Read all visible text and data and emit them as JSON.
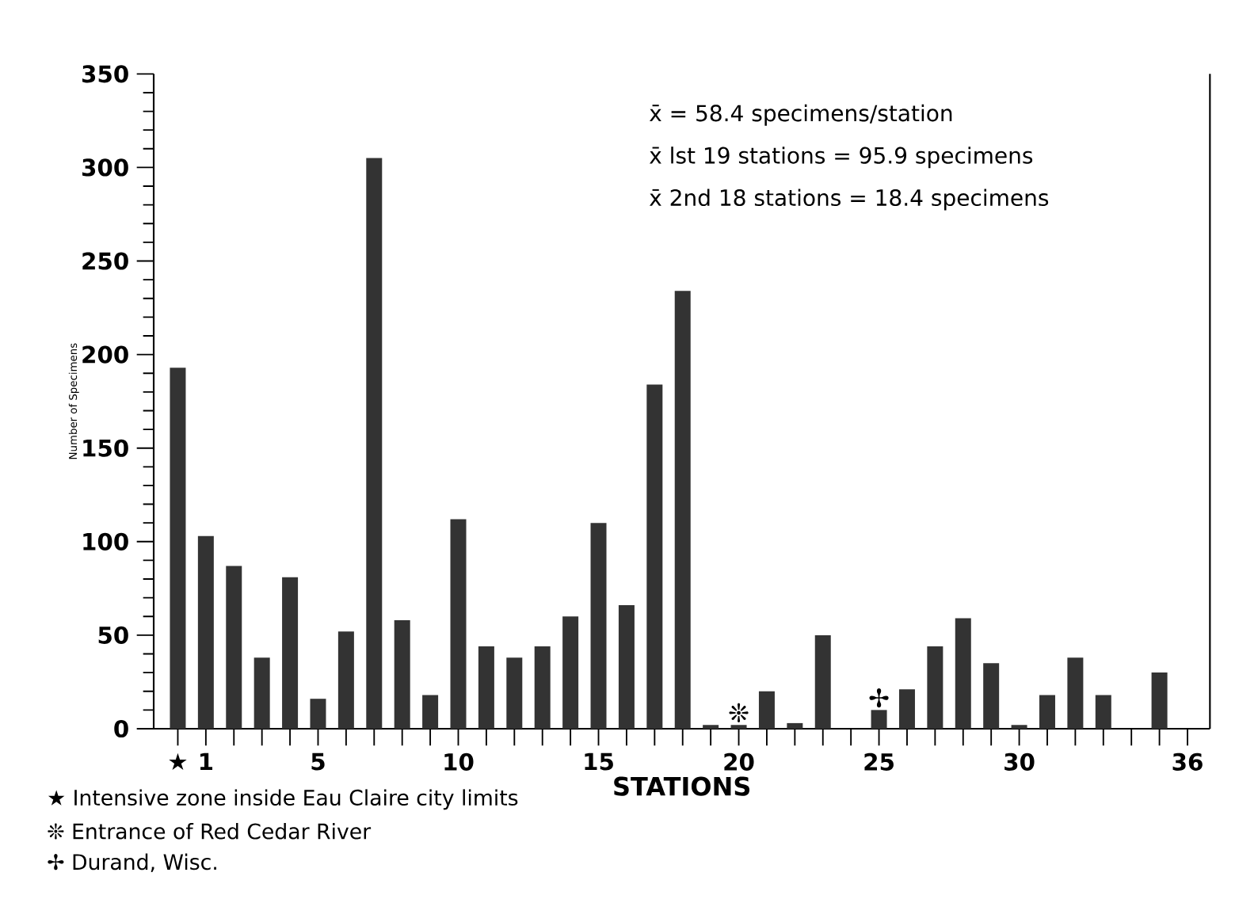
{
  "chart_data": {
    "type": "bar",
    "xlabel": "STATIONS",
    "ylabel": "Number of Specimens",
    "categories": [
      "★",
      "1",
      null,
      null,
      null,
      "5",
      null,
      null,
      null,
      null,
      "10",
      null,
      null,
      null,
      null,
      "15",
      null,
      null,
      null,
      null,
      "20",
      null,
      null,
      null,
      null,
      "25",
      null,
      null,
      null,
      null,
      "30",
      null,
      null,
      null,
      null,
      null,
      "36"
    ],
    "values": [
      193,
      103,
      87,
      38,
      81,
      16,
      52,
      305,
      58,
      18,
      112,
      44,
      38,
      44,
      60,
      110,
      66,
      184,
      234,
      2,
      2,
      20,
      3,
      50,
      0,
      10,
      21,
      44,
      59,
      35,
      2,
      18,
      38,
      18,
      0,
      30,
      0
    ],
    "color": "#333333",
    "ylim": [
      0,
      350
    ],
    "yticks": [
      0,
      50,
      100,
      150,
      200,
      250,
      300,
      350
    ],
    "annotations": [
      "x̄  = 58.4 specimens/station",
      "x̄  lst 19 stations = 95.9 specimens",
      "x̄  2nd 18 stations  = 18.4 specimens",
      {
        "text": "❊",
        "x": "20",
        "y": 2
      },
      {
        "text": "✢",
        "x": "25",
        "y": 10
      },
      "★  Intensive zone inside Eau Claire city limits",
      "❊  Entrance of Red Cedar River",
      "✢  Durand, Wisc."
    ]
  }
}
